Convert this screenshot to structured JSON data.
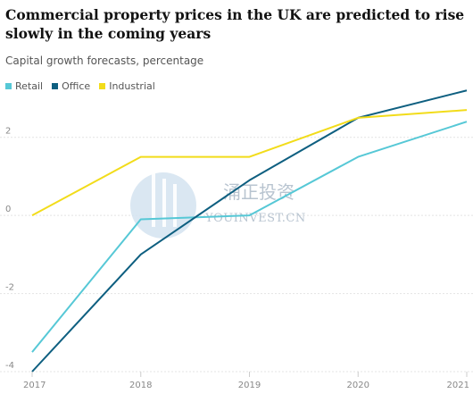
{
  "title": "Commercial property prices in the UK are predicted to rise slowly in the coming years",
  "subtitle": "Capital growth forecasts, percentage",
  "watermark": {
    "cn": "涌正投资",
    "en": "YOUINVEST.CN"
  },
  "chart_data": {
    "type": "line",
    "title": "Commercial property prices in the UK are predicted to rise slowly in the coming years",
    "subtitle": "Capital growth forecasts, percentage",
    "xlabel": "",
    "ylabel": "",
    "x": [
      "2017",
      "2018",
      "2019",
      "2020",
      "2021"
    ],
    "ylim": [
      -4,
      3
    ],
    "yticks": [
      -4,
      -2,
      0,
      2
    ],
    "ytick_labels": [
      "-4",
      "-2",
      "0",
      "2"
    ],
    "grid": true,
    "legend_position": "top-left",
    "series": [
      {
        "name": "Retail",
        "color": "#56c8d6",
        "values": [
          -3.5,
          -0.1,
          0.0,
          1.5,
          2.4
        ]
      },
      {
        "name": "Office",
        "color": "#0e5f80",
        "values": [
          -4.0,
          -1.0,
          0.9,
          2.5,
          3.2
        ]
      },
      {
        "name": "Industrial",
        "color": "#f2dc1a",
        "values": [
          0.0,
          1.5,
          1.5,
          2.5,
          2.7
        ]
      }
    ]
  }
}
